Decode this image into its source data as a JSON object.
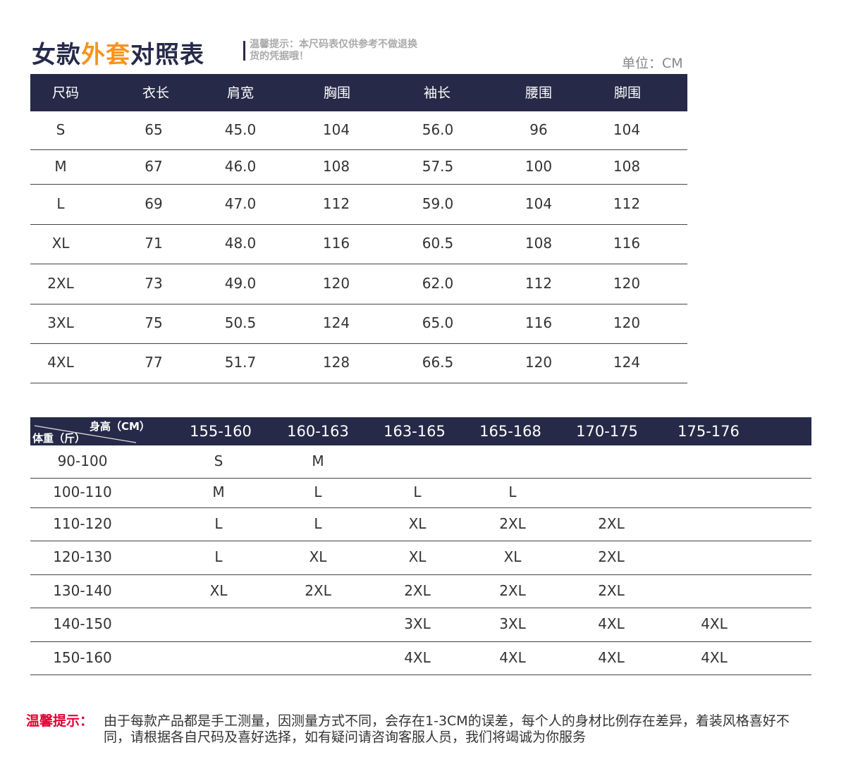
{
  "title": {
    "part1": "女款",
    "part2": "外套",
    "part3": "对照表"
  },
  "tip": "温馨提示：本尺码表仅供参考不做退换货的凭据哦！",
  "unit": "单位：CM",
  "size_table": {
    "headers": [
      "尺码",
      "衣长",
      "肩宽",
      "胸围",
      "袖长",
      "腰围",
      "脚围"
    ],
    "rows": [
      [
        "S",
        "65",
        "45.0",
        "104",
        "56.0",
        "96",
        "104"
      ],
      [
        "M",
        "67",
        "46.0",
        "108",
        "57.5",
        "100",
        "108"
      ],
      [
        "L",
        "69",
        "47.0",
        "112",
        "59.0",
        "104",
        "112"
      ],
      [
        "XL",
        "71",
        "48.0",
        "116",
        "60.5",
        "108",
        "116"
      ],
      [
        "2XL",
        "73",
        "49.0",
        "120",
        "62.0",
        "112",
        "120"
      ],
      [
        "3XL",
        "75",
        "50.5",
        "124",
        "65.0",
        "116",
        "120"
      ],
      [
        "4XL",
        "77",
        "51.7",
        "128",
        "66.5",
        "120",
        "124"
      ]
    ]
  },
  "fit_table": {
    "corner_top": "身高（CM）",
    "corner_bottom": "体重（斤）",
    "headers": [
      "155-160",
      "160-163",
      "163-165",
      "165-168",
      "170-175",
      "175-176"
    ],
    "rows": [
      [
        "90-100",
        "S",
        "M",
        "",
        "",
        "",
        ""
      ],
      [
        "100-110",
        "M",
        "L",
        "L",
        "L",
        "",
        ""
      ],
      [
        "110-120",
        "L",
        "L",
        "XL",
        "2XL",
        "2XL",
        ""
      ],
      [
        "120-130",
        "L",
        "XL",
        "XL",
        "XL",
        "2XL",
        ""
      ],
      [
        "130-140",
        "XL",
        "2XL",
        "2XL",
        "2XL",
        "2XL",
        ""
      ],
      [
        "140-150",
        "",
        "",
        "3XL",
        "3XL",
        "4XL",
        "4XL"
      ],
      [
        "150-160",
        "",
        "",
        "4XL",
        "4XL",
        "4XL",
        "4XL"
      ]
    ]
  },
  "note": {
    "label": "温馨提示：",
    "text": "由于每款产品都是手工测量，因测量方式不同，会存在1-3CM的误差，每个人的身材比例存在差异，着装风格喜好不同，请根据各自尺码及喜好选择，如有疑问请咨询客服人员，我们将竭诚为你服务"
  },
  "colors": {
    "header_bg": "#262a48",
    "accent": "#f7931e",
    "note_label": "#e60033"
  }
}
